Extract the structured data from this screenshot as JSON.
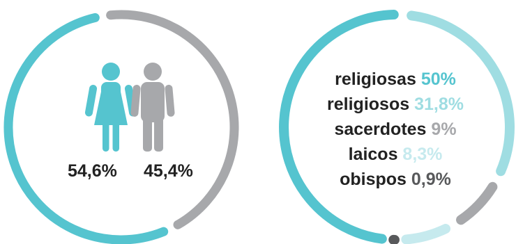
{
  "colors": {
    "teal": "#55c4cf",
    "light_teal": "#9fdde2",
    "pale_teal": "#c6eaee",
    "gray": "#a7a8ab",
    "dark_gray": "#58595b",
    "text": "#222222"
  },
  "icons": {
    "female": "woman-icon",
    "male": "man-icon"
  },
  "chart_data": [
    {
      "type": "pie",
      "style": "ring",
      "categories": [
        "women",
        "men"
      ],
      "values": [
        54.6,
        45.4
      ],
      "labels": [
        "54,6%",
        "45,4%"
      ],
      "colors": [
        "#55c4cf",
        "#a7a8ab"
      ]
    },
    {
      "type": "pie",
      "style": "ring",
      "categories": [
        "religiosas",
        "religiosos",
        "sacerdotes",
        "laicos",
        "obispos"
      ],
      "values": [
        50,
        31.8,
        9,
        8.3,
        0.9
      ],
      "labels": [
        "50%",
        "31,8%",
        "9%",
        "8,3%",
        "0,9%"
      ],
      "colors": [
        "#55c4cf",
        "#9fdde2",
        "#a7a8ab",
        "#c6eaee",
        "#58595b"
      ]
    }
  ]
}
